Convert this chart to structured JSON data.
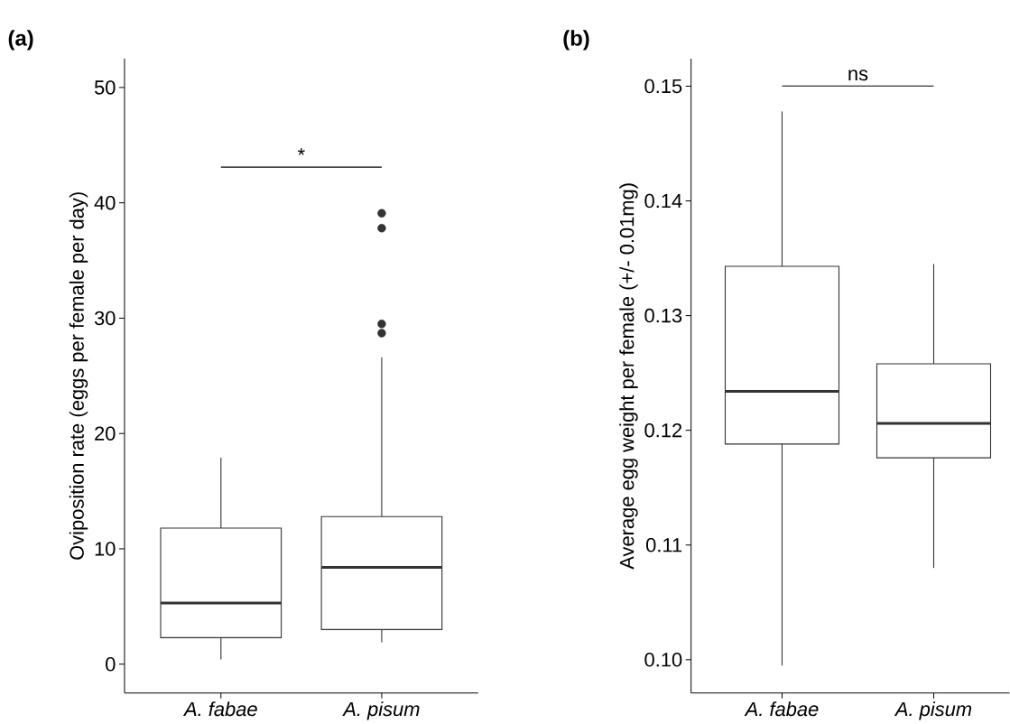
{
  "chart_data": [
    {
      "type": "box",
      "title": "(a)",
      "ylabel": "Oviposition rate (eggs per female per day)",
      "categories": [
        "A. fabae",
        "A. pisum"
      ],
      "boxes": [
        {
          "low": 0.4,
          "q1": 2.3,
          "median": 5.3,
          "q3": 11.8,
          "high": 17.9
        },
        {
          "low": 1.9,
          "q1": 3.0,
          "median": 8.4,
          "q3": 12.8,
          "high": 26.6,
          "outliers": [
            39.1,
            37.8,
            29.5,
            28.7
          ]
        }
      ],
      "ylim": [
        -2.5,
        52.5
      ],
      "yticks": [
        0,
        10,
        20,
        30,
        40,
        50
      ],
      "annotations": [
        "*"
      ]
    },
    {
      "type": "box",
      "title": "(b)",
      "ylabel": "Average egg weight per female (+/- 0.01mg)",
      "categories": [
        "A. fabae",
        "A. pisum"
      ],
      "boxes": [
        {
          "low": 0.0995,
          "q1": 0.1188,
          "median": 0.1234,
          "q3": 0.1343,
          "high": 0.1478
        },
        {
          "low": 0.108,
          "q1": 0.1176,
          "median": 0.1206,
          "q3": 0.1258,
          "high": 0.1345
        }
      ],
      "ylim": [
        0.0971,
        0.1524
      ],
      "yticks": [
        {
          "value": 0.1,
          "label": "0.10"
        },
        {
          "value": 0.11,
          "label": "0.11"
        },
        {
          "value": 0.12,
          "label": "0.12"
        },
        {
          "value": 0.13,
          "label": "0.13"
        },
        {
          "value": 0.14,
          "label": "0.14"
        },
        {
          "value": 0.15,
          "label": "0.15"
        }
      ],
      "annotations": [
        "ns"
      ]
    }
  ]
}
